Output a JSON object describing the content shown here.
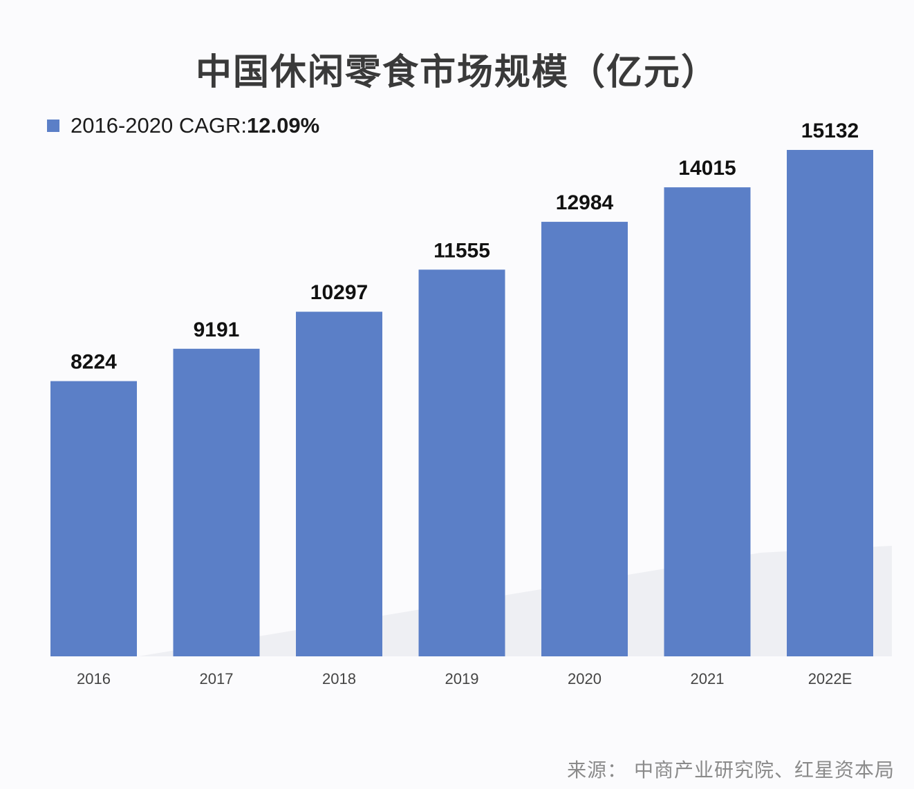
{
  "chart_data": {
    "type": "bar",
    "title": "中国休闲零食市场规模（亿元）",
    "legend": {
      "series_label": "2016-2020 CAGR:",
      "value": "12.09%",
      "placement": "top-left"
    },
    "categories": [
      "2016",
      "2017",
      "2018",
      "2019",
      "2020",
      "2021",
      "2022E"
    ],
    "values": [
      8224,
      9191,
      10297,
      11555,
      12984,
      14015,
      15132
    ],
    "data_labels": [
      "8224",
      "9191",
      "10297",
      "11555",
      "12984",
      "14015",
      "15132"
    ],
    "xlabel": "",
    "ylabel": "",
    "ylim": [
      0,
      19612
    ],
    "grid": false,
    "bar_color": "#5b7fc7",
    "source": "来源： 中商产业研究院、红星资本局"
  }
}
